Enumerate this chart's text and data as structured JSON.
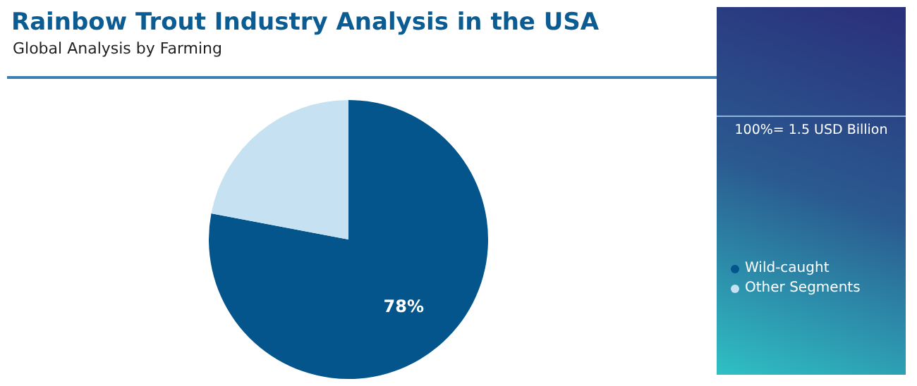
{
  "chart_data": {
    "type": "pie",
    "title": "Rainbow Trout Industry Analysis in the USA",
    "subtitle": "Global Analysis by Farming",
    "annotations": [
      "100%= 1.5 USD Billion"
    ],
    "categories": [
      "Wild-caught",
      "Other Segments"
    ],
    "values": [
      78,
      22
    ],
    "colors": [
      "#03558c",
      "#c5e1f2"
    ],
    "value_labels": [
      "78%",
      null
    ],
    "legend": "right"
  }
}
